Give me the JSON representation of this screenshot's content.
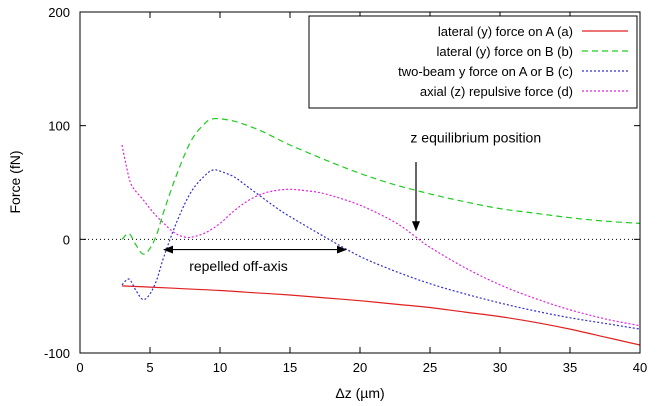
{
  "chart_data": {
    "type": "line",
    "title": "",
    "xlabel": "Δz (µm)",
    "ylabel": "Force (fN)",
    "xlim": [
      0,
      40
    ],
    "ylim": [
      -100,
      200
    ],
    "x_ticks": [
      "0",
      "5",
      "10",
      "15",
      "20",
      "25",
      "30",
      "35",
      "40"
    ],
    "y_ticks": [
      "-100",
      "0",
      "100",
      "200"
    ],
    "grid": false,
    "legend_position": "top-right",
    "zero_line": {
      "y": 0,
      "style": "dotted",
      "color": "#000000"
    },
    "series": [
      {
        "name": "lateral (y) force on A (a)",
        "color": "#e02020",
        "dash": "solid",
        "x": [
          3,
          5,
          7.5,
          10,
          12.5,
          15,
          17.5,
          20,
          22.5,
          25,
          27.5,
          30,
          32.5,
          35,
          37.5,
          40
        ],
        "y": [
          -41,
          -42,
          -43.5,
          -45,
          -47,
          -49,
          -51.5,
          -54,
          -57,
          -60,
          -64,
          -68,
          -73,
          -79,
          -86,
          -93
        ]
      },
      {
        "name": "lateral (y) force on B (b)",
        "color": "#20cc20",
        "dash": "dashed",
        "x": [
          3.0,
          3.5,
          4.0,
          4.5,
          5.0,
          5.5,
          6.0,
          7.0,
          8.0,
          9.0,
          9.5,
          10.0,
          11.0,
          12.0,
          13.0,
          14.0,
          15.0,
          17.5,
          20.0,
          22.5,
          25.0,
          27.5,
          30.0,
          32.5,
          35.0,
          37.5,
          40.0
        ],
        "y": [
          0,
          5,
          -5,
          -13,
          -8,
          5,
          25,
          60,
          88,
          103,
          106,
          106,
          104,
          100,
          95,
          89,
          83,
          70,
          58,
          48,
          40,
          33,
          27,
          23,
          19,
          16,
          14
        ]
      },
      {
        "name": "two-beam y force on A or B (c)",
        "color": "#3030d0",
        "dash": "dotted",
        "x": [
          3.0,
          3.5,
          4.0,
          4.5,
          5.0,
          5.5,
          6.0,
          7.0,
          8.0,
          9.0,
          9.5,
          10.0,
          11.0,
          12.0,
          13.0,
          14.0,
          15.0,
          17.5,
          20.0,
          22.5,
          25.0,
          27.5,
          30.0,
          32.5,
          35.0,
          37.5,
          40.0
        ],
        "y": [
          -40,
          -35,
          -45,
          -53,
          -48,
          -35,
          -15,
          18,
          43,
          57,
          61,
          60,
          55,
          46,
          37,
          28,
          20,
          2,
          -15,
          -28,
          -39,
          -48,
          -56,
          -63,
          -69,
          -74,
          -79
        ]
      },
      {
        "name": "axial (z) repulsive force (d)",
        "color": "#e020e0",
        "dash": "dotted",
        "x": [
          3.0,
          3.3,
          3.6,
          4.0,
          4.5,
          5.0,
          5.5,
          6.0,
          6.5,
          7.0,
          7.5,
          8.0,
          9.0,
          10.0,
          11.0,
          12.0,
          13.0,
          14.0,
          15.0,
          16.0,
          17.5,
          20.0,
          22.5,
          24.0,
          25.0,
          27.5,
          30.0,
          32.5,
          35.0,
          37.5,
          40.0
        ],
        "y": [
          83,
          65,
          50,
          42,
          35,
          27,
          20,
          14,
          8,
          4,
          2,
          2,
          6,
          14,
          25,
          34,
          40,
          43,
          44,
          43,
          40,
          30,
          15,
          2,
          -7,
          -25,
          -40,
          -52,
          -62,
          -70,
          -76
        ]
      }
    ],
    "annotations": [
      {
        "id": "equilibrium",
        "text": "z equilibrium position",
        "text_x": 23.6,
        "text_y": 85,
        "arrow_from": [
          24,
          68
        ],
        "arrow_to": [
          24,
          8
        ]
      },
      {
        "id": "repelled",
        "text": "repelled off-axis",
        "text_x": 7.8,
        "text_y": -28,
        "arrow_from": [
          6,
          -9
        ],
        "arrow_to": [
          19,
          -9
        ]
      }
    ]
  }
}
